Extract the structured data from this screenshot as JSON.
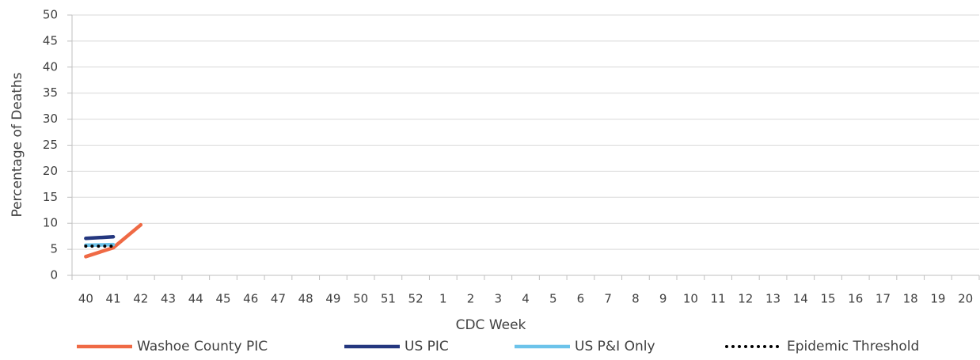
{
  "chart_data": {
    "type": "line",
    "x_label": "CDC Week",
    "y_label": "Percentage of Deaths",
    "categories": [
      "40",
      "41",
      "42",
      "43",
      "44",
      "45",
      "46",
      "47",
      "48",
      "49",
      "50",
      "51",
      "52",
      "1",
      "2",
      "3",
      "4",
      "5",
      "6",
      "7",
      "8",
      "9",
      "10",
      "11",
      "12",
      "13",
      "14",
      "15",
      "16",
      "17",
      "18",
      "19",
      "20"
    ],
    "series": [
      {
        "name": "Washoe County PIC",
        "color": "#ef6a45",
        "style": "solid",
        "values": [
          3.6,
          5.3,
          9.7,
          null,
          null,
          null,
          null,
          null,
          null,
          null,
          null,
          null,
          null,
          null,
          null,
          null,
          null,
          null,
          null,
          null,
          null,
          null,
          null,
          null,
          null,
          null,
          null,
          null,
          null,
          null,
          null,
          null,
          null
        ]
      },
      {
        "name": "US PIC",
        "color": "#24377f",
        "style": "solid",
        "values": [
          7.1,
          7.4,
          null,
          null,
          null,
          null,
          null,
          null,
          null,
          null,
          null,
          null,
          null,
          null,
          null,
          null,
          null,
          null,
          null,
          null,
          null,
          null,
          null,
          null,
          null,
          null,
          null,
          null,
          null,
          null,
          null,
          null,
          null
        ]
      },
      {
        "name": "US P&I Only",
        "color": "#6cc3ea",
        "style": "solid",
        "values": [
          5.8,
          5.9,
          null,
          null,
          null,
          null,
          null,
          null,
          null,
          null,
          null,
          null,
          null,
          null,
          null,
          null,
          null,
          null,
          null,
          null,
          null,
          null,
          null,
          null,
          null,
          null,
          null,
          null,
          null,
          null,
          null,
          null,
          null
        ]
      },
      {
        "name": "Epidemic Threshold",
        "color": "#000000",
        "style": "dotted",
        "values": [
          5.6,
          5.6,
          null,
          null,
          null,
          null,
          null,
          null,
          null,
          null,
          null,
          null,
          null,
          null,
          null,
          null,
          null,
          null,
          null,
          null,
          null,
          null,
          null,
          null,
          null,
          null,
          null,
          null,
          null,
          null,
          null,
          null,
          null
        ]
      }
    ],
    "ylim": [
      0,
      50
    ],
    "yticks": [
      0,
      5,
      10,
      15,
      20,
      25,
      30,
      35,
      40,
      45,
      50
    ],
    "grid": true,
    "legend": "bottom"
  }
}
